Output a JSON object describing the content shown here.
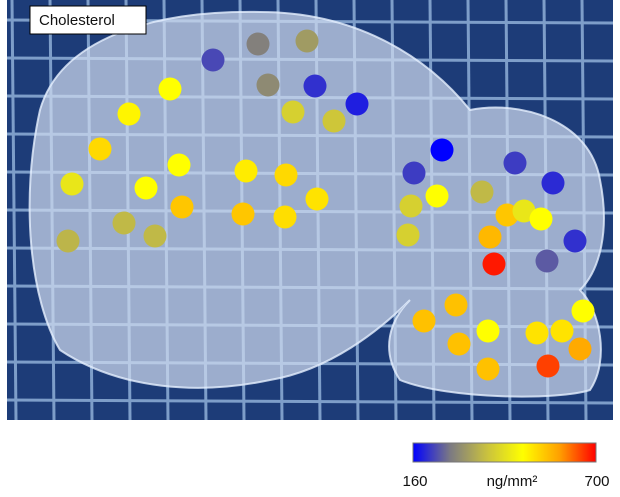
{
  "chart_data": {
    "type": "spatial-dots",
    "title": "Cholesterol",
    "values": [
      225,
      280,
      320,
      484,
      495,
      295,
      203,
      187,
      403,
      387,
      527,
      484,
      484,
      441,
      549,
      365,
      365,
      360,
      506,
      527,
      516,
      549,
      522,
      160,
      214,
      484,
      403,
      403,
      365,
      214,
      198,
      549,
      441,
      484,
      565,
      203,
      241,
      684,
      554,
      554,
      484,
      554,
      516,
      516,
      484,
      581,
      554,
      657
    ],
    "colorbar": {
      "lim": [
        160,
        700
      ],
      "label": "ng/mm²",
      "colors": [
        "#0000ff",
        "#7a7884",
        "#c8c040",
        "#ffff00",
        "#ffa000",
        "#ff0000"
      ]
    }
  }
}
